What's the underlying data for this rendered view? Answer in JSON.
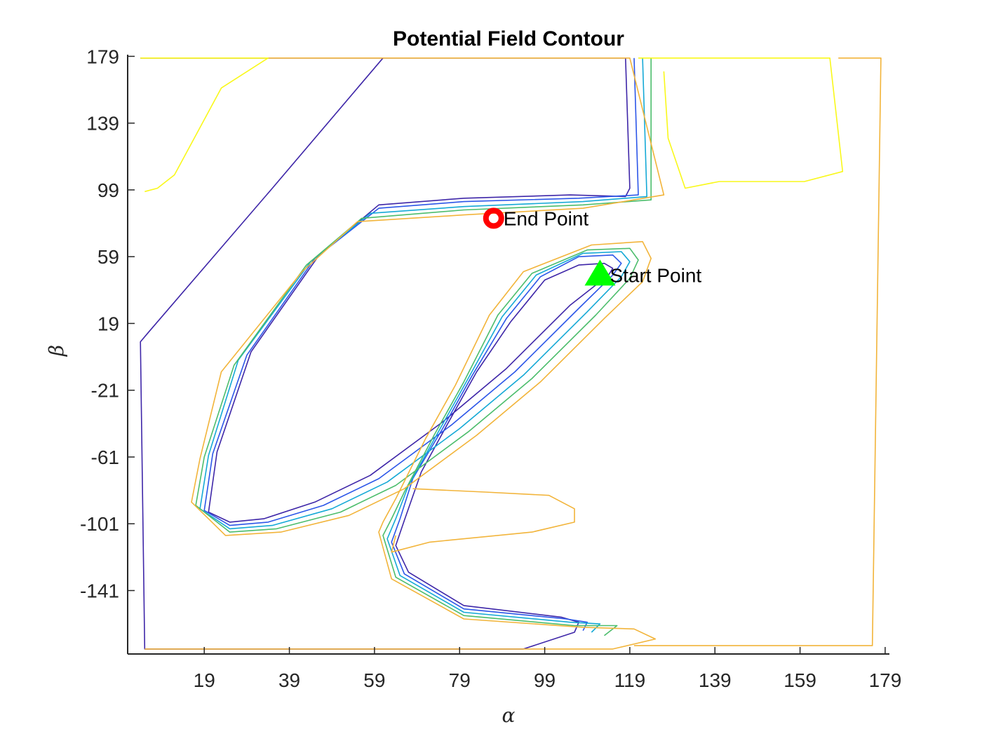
{
  "chart_data": {
    "type": "contour",
    "title": "Potential Field Contour",
    "xlabel": "α",
    "ylabel": "β",
    "xlim": [
      1,
      180
    ],
    "ylim": [
      -179,
      180
    ],
    "x_ticks": [
      19,
      39,
      59,
      79,
      99,
      119,
      139,
      159,
      179
    ],
    "y_ticks": [
      179,
      139,
      99,
      59,
      19,
      -21,
      -61,
      -101,
      -141
    ],
    "grid": false,
    "contour_levels": [
      {
        "level": 1,
        "color": "#3e26a8"
      },
      {
        "level": 2,
        "color": "#2c56e8"
      },
      {
        "level": 3,
        "color": "#15a9d6"
      },
      {
        "level": 4,
        "color": "#4cbd6c"
      },
      {
        "level": 5,
        "color": "#f2b43a"
      },
      {
        "level": 6,
        "color": "#f9f81a"
      }
    ],
    "contours": [
      {
        "level": 1,
        "points": [
          [
            4,
            178
          ],
          [
            95,
            178
          ],
          [
            118,
            178
          ],
          [
            119,
            100
          ],
          [
            118,
            95
          ],
          [
            105,
            96
          ],
          [
            80,
            94
          ],
          [
            60,
            90
          ],
          [
            46,
            60
          ],
          [
            30,
            2
          ],
          [
            22,
            -58
          ],
          [
            20,
            -94
          ],
          [
            25,
            -100
          ],
          [
            33,
            -98
          ],
          [
            45,
            -88
          ],
          [
            58,
            -72
          ],
          [
            75,
            -40
          ],
          [
            90,
            -8
          ],
          [
            105,
            30
          ],
          [
            114,
            48
          ],
          [
            115,
            52
          ],
          [
            113,
            55
          ],
          [
            107,
            54
          ],
          [
            99,
            45
          ],
          [
            91,
            20
          ],
          [
            83,
            -10
          ],
          [
            76,
            -42
          ],
          [
            70,
            -70
          ],
          [
            66,
            -99
          ],
          [
            64,
            -114
          ],
          [
            67,
            -130
          ],
          [
            80,
            -150
          ],
          [
            103,
            -157
          ],
          [
            107,
            -160
          ],
          [
            106,
            -166
          ],
          [
            94,
            -176
          ],
          [
            40,
            -176
          ],
          [
            5,
            -176
          ],
          [
            4,
            8
          ],
          [
            6,
            14
          ],
          [
            35,
            100
          ],
          [
            61,
            178
          ]
        ]
      },
      {
        "level": 2,
        "points": [
          [
            120,
            178
          ],
          [
            121,
            96
          ],
          [
            107,
            94
          ],
          [
            80,
            92
          ],
          [
            60,
            88
          ],
          [
            45,
            58
          ],
          [
            29,
            0
          ],
          [
            21,
            -59
          ],
          [
            19,
            -93
          ],
          [
            25,
            -102
          ],
          [
            34,
            -100
          ],
          [
            47,
            -90
          ],
          [
            60,
            -74
          ],
          [
            77,
            -42
          ],
          [
            92,
            -10
          ],
          [
            107,
            28
          ],
          [
            115,
            48
          ],
          [
            117,
            55
          ],
          [
            115,
            60
          ],
          [
            107,
            59
          ],
          [
            98,
            47
          ],
          [
            90,
            22
          ],
          [
            82,
            -12
          ],
          [
            75,
            -44
          ],
          [
            68,
            -74
          ],
          [
            65,
            -98
          ],
          [
            63,
            -112
          ],
          [
            66,
            -131
          ],
          [
            80,
            -152
          ],
          [
            104,
            -158
          ],
          [
            109,
            -160
          ],
          [
            108,
            -165
          ]
        ]
      },
      {
        "level": 3,
        "points": [
          [
            122,
            178
          ],
          [
            123,
            95
          ],
          [
            108,
            92
          ],
          [
            80,
            89
          ],
          [
            58,
            85
          ],
          [
            44,
            56
          ],
          [
            27,
            -3
          ],
          [
            20,
            -60
          ],
          [
            18,
            -92
          ],
          [
            25,
            -104
          ],
          [
            35,
            -102
          ],
          [
            49,
            -92
          ],
          [
            62,
            -76
          ],
          [
            79,
            -44
          ],
          [
            94,
            -12
          ],
          [
            109,
            26
          ],
          [
            117,
            47
          ],
          [
            119,
            56
          ],
          [
            117,
            62
          ],
          [
            108,
            61
          ],
          [
            97,
            48
          ],
          [
            89,
            23
          ],
          [
            81,
            -14
          ],
          [
            74,
            -46
          ],
          [
            67,
            -78
          ],
          [
            64,
            -98
          ],
          [
            62,
            -110
          ],
          [
            65,
            -132
          ],
          [
            80,
            -154
          ],
          [
            105,
            -160
          ],
          [
            112,
            -161
          ],
          [
            110,
            -166
          ]
        ]
      },
      {
        "level": 4,
        "points": [
          [
            124,
            178
          ],
          [
            124,
            93
          ],
          [
            108,
            90
          ],
          [
            80,
            87
          ],
          [
            56,
            82
          ],
          [
            43,
            54
          ],
          [
            26,
            -6
          ],
          [
            19,
            -61
          ],
          [
            17,
            -90
          ],
          [
            25,
            -106
          ],
          [
            36,
            -104
          ],
          [
            51,
            -94
          ],
          [
            64,
            -78
          ],
          [
            81,
            -46
          ],
          [
            96,
            -14
          ],
          [
            111,
            24
          ],
          [
            119,
            46
          ],
          [
            121,
            57
          ],
          [
            119,
            64
          ],
          [
            109,
            63
          ],
          [
            96,
            49
          ],
          [
            88,
            24
          ],
          [
            80,
            -16
          ],
          [
            73,
            -48
          ],
          [
            66,
            -82
          ],
          [
            63,
            -98
          ],
          [
            61,
            -108
          ],
          [
            64,
            -133
          ],
          [
            80,
            -156
          ],
          [
            106,
            -162
          ],
          [
            116,
            -162
          ],
          [
            113,
            -168
          ]
        ]
      },
      {
        "level": 5,
        "points": [
          [
            4,
            178
          ],
          [
            95,
            178
          ],
          [
            119,
            178
          ],
          [
            127,
            96
          ],
          [
            108,
            88
          ],
          [
            80,
            84
          ],
          [
            55,
            80
          ],
          [
            42,
            50
          ],
          [
            23,
            -10
          ],
          [
            18,
            -62
          ],
          [
            16,
            -88
          ],
          [
            24,
            -108
          ],
          [
            37,
            -106
          ],
          [
            53,
            -96
          ],
          [
            66,
            -80
          ],
          [
            83,
            -48
          ],
          [
            98,
            -16
          ],
          [
            113,
            22
          ],
          [
            122,
            44
          ],
          [
            124,
            58
          ],
          [
            122,
            68
          ],
          [
            110,
            66
          ],
          [
            94,
            50
          ],
          [
            86,
            24
          ],
          [
            78,
            -18
          ],
          [
            71,
            -50
          ],
          [
            64,
            -86
          ],
          [
            61,
            -100
          ],
          [
            60,
            -106
          ],
          [
            63,
            -134
          ],
          [
            80,
            -158
          ],
          [
            108,
            -163
          ],
          [
            120,
            -164
          ],
          [
            125,
            -170
          ],
          [
            115,
            -176
          ],
          [
            60,
            -176
          ],
          [
            5,
            -176
          ]
        ]
      },
      {
        "level": 6,
        "points": [
          [
            4,
            178
          ],
          [
            34,
            178
          ],
          [
            23,
            160
          ],
          [
            12,
            108
          ],
          [
            8,
            100
          ],
          [
            5,
            98
          ]
        ]
      },
      {
        "level": 6,
        "points": [
          [
            121,
            178
          ],
          [
            166,
            178
          ],
          [
            169,
            110
          ],
          [
            160,
            104
          ],
          [
            140,
            104
          ],
          [
            132,
            100
          ],
          [
            128,
            130
          ],
          [
            127,
            170
          ]
        ]
      },
      {
        "level": 5,
        "points": [
          [
            168,
            178
          ],
          [
            178,
            178
          ],
          [
            176,
            -174
          ],
          [
            120,
            -174
          ]
        ]
      },
      {
        "level": 5,
        "points": [
          [
            64,
            -108
          ],
          [
            63,
            -118
          ],
          [
            72,
            -112
          ],
          [
            96,
            -106
          ],
          [
            106,
            -100
          ],
          [
            106,
            -92
          ],
          [
            100,
            -84
          ],
          [
            85,
            -82
          ],
          [
            68,
            -80
          ]
        ]
      }
    ],
    "markers": [
      {
        "name": "End Point",
        "x": 87,
        "y": 82,
        "shape": "circle",
        "color": "#ff0000"
      },
      {
        "name": "Start Point",
        "x": 112,
        "y": 48,
        "shape": "triangle",
        "color": "#00ff00"
      }
    ],
    "annotations": [
      "End Point",
      "Start Point"
    ]
  }
}
